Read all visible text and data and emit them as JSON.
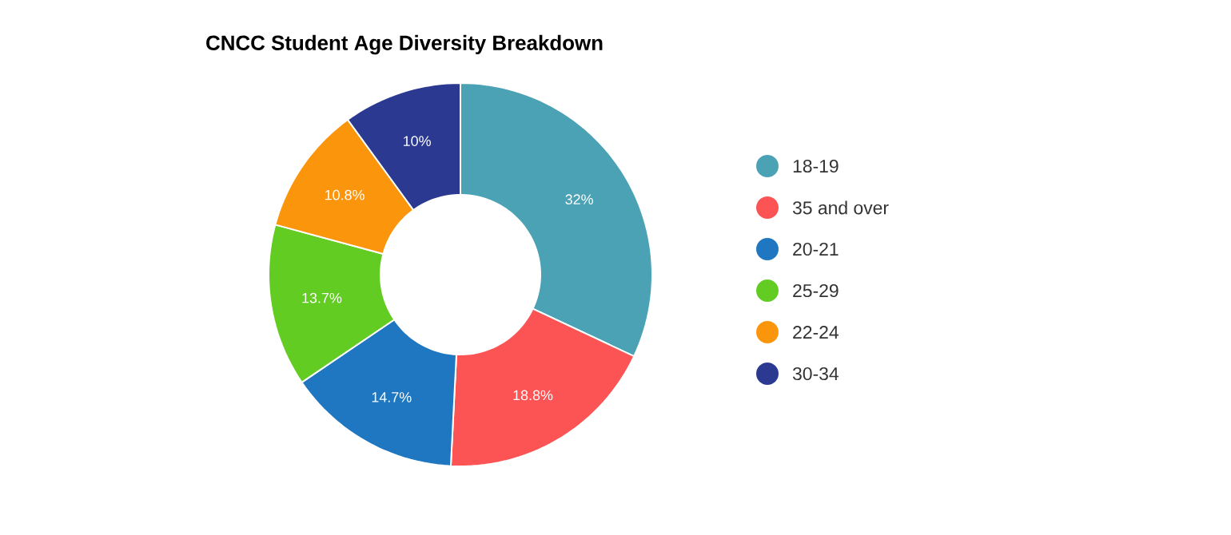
{
  "chart_data": {
    "type": "donut",
    "title": "CNCC Student Age Diversity Breakdown",
    "categories": [
      "18-19",
      "35 and over",
      "20-21",
      "25-29",
      "22-24",
      "30-34"
    ],
    "values": [
      32,
      18.8,
      14.7,
      13.7,
      10.8,
      10
    ],
    "value_labels": [
      "32%",
      "18.8%",
      "14.7%",
      "13.7%",
      "10.8%",
      "10%"
    ],
    "colors": [
      "#4aa2b4",
      "#fc5454",
      "#1f77c1",
      "#63cc23",
      "#fb950b",
      "#2b3990"
    ],
    "legend": "right"
  }
}
